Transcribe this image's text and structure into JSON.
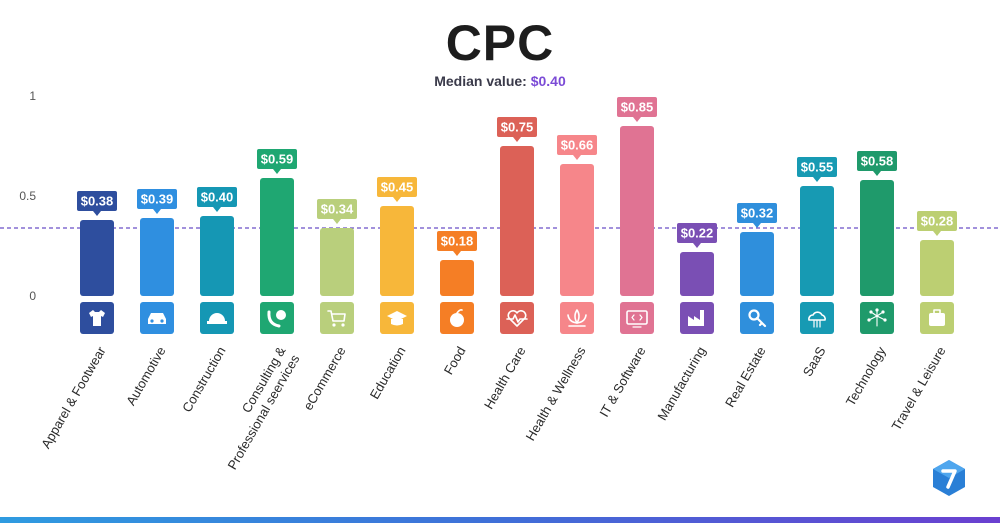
{
  "header": {
    "title": "CPC",
    "median_label": "Median value:",
    "median_value": "$0.40"
  },
  "chart_data": {
    "type": "bar",
    "title": "CPC",
    "subtitle": "Median value: $0.40",
    "ylim": [
      0,
      1
    ],
    "yticks": [
      {
        "value": 0,
        "label": "0"
      },
      {
        "value": 0.5,
        "label": "0.5"
      },
      {
        "value": 1,
        "label": "1"
      }
    ],
    "reference_line": {
      "value": 0.34,
      "style": "dashed",
      "color": "#6a4fc8"
    },
    "categories": [
      {
        "name": "Apparel & Footwear",
        "value": 0.38,
        "label": "$0.38",
        "color": "#2e4e9e",
        "icon": "tshirt-icon"
      },
      {
        "name": "Automotive",
        "value": 0.39,
        "label": "$0.39",
        "color": "#2f8fe0",
        "icon": "car-icon"
      },
      {
        "name": "Construction",
        "value": 0.4,
        "label": "$0.40",
        "color": "#1597b4",
        "icon": "hardhat-icon"
      },
      {
        "name": "Consulting & Professional seervices",
        "value": 0.59,
        "label": "$0.59",
        "color": "#1fa772",
        "icon": "phone-chat-icon"
      },
      {
        "name": "eCommerce",
        "value": 0.34,
        "label": "$0.34",
        "color": "#b9cf7c",
        "icon": "cart-icon"
      },
      {
        "name": "Education",
        "value": 0.45,
        "label": "$0.45",
        "color": "#f7b73a",
        "icon": "graduation-cap-icon"
      },
      {
        "name": "Food",
        "value": 0.18,
        "label": "$0.18",
        "color": "#f57e25",
        "icon": "apple-icon"
      },
      {
        "name": "Health Care",
        "value": 0.75,
        "label": "$0.75",
        "color": "#dc6157",
        "icon": "heartbeat-icon"
      },
      {
        "name": "Health & Wellness",
        "value": 0.66,
        "label": "$0.66",
        "color": "#f6868a",
        "icon": "lotus-icon"
      },
      {
        "name": "IT & Software",
        "value": 0.85,
        "label": "$0.85",
        "color": "#e07393",
        "icon": "monitor-code-icon"
      },
      {
        "name": "Manufacturing",
        "value": 0.22,
        "label": "$0.22",
        "color": "#7a4fb4",
        "icon": "factory-icon"
      },
      {
        "name": "Real Estate",
        "value": 0.32,
        "label": "$0.32",
        "color": "#2f8fdc",
        "icon": "house-key-icon"
      },
      {
        "name": "SaaS",
        "value": 0.55,
        "label": "$0.55",
        "color": "#179ab3",
        "icon": "cloud-icon"
      },
      {
        "name": "Technology",
        "value": 0.58,
        "label": "$0.58",
        "color": "#1f9a6b",
        "icon": "network-hand-icon"
      },
      {
        "name": "Travel & Leisure",
        "value": 0.28,
        "label": "$0.28",
        "color": "#bccf72",
        "icon": "suitcase-icon"
      }
    ]
  }
}
